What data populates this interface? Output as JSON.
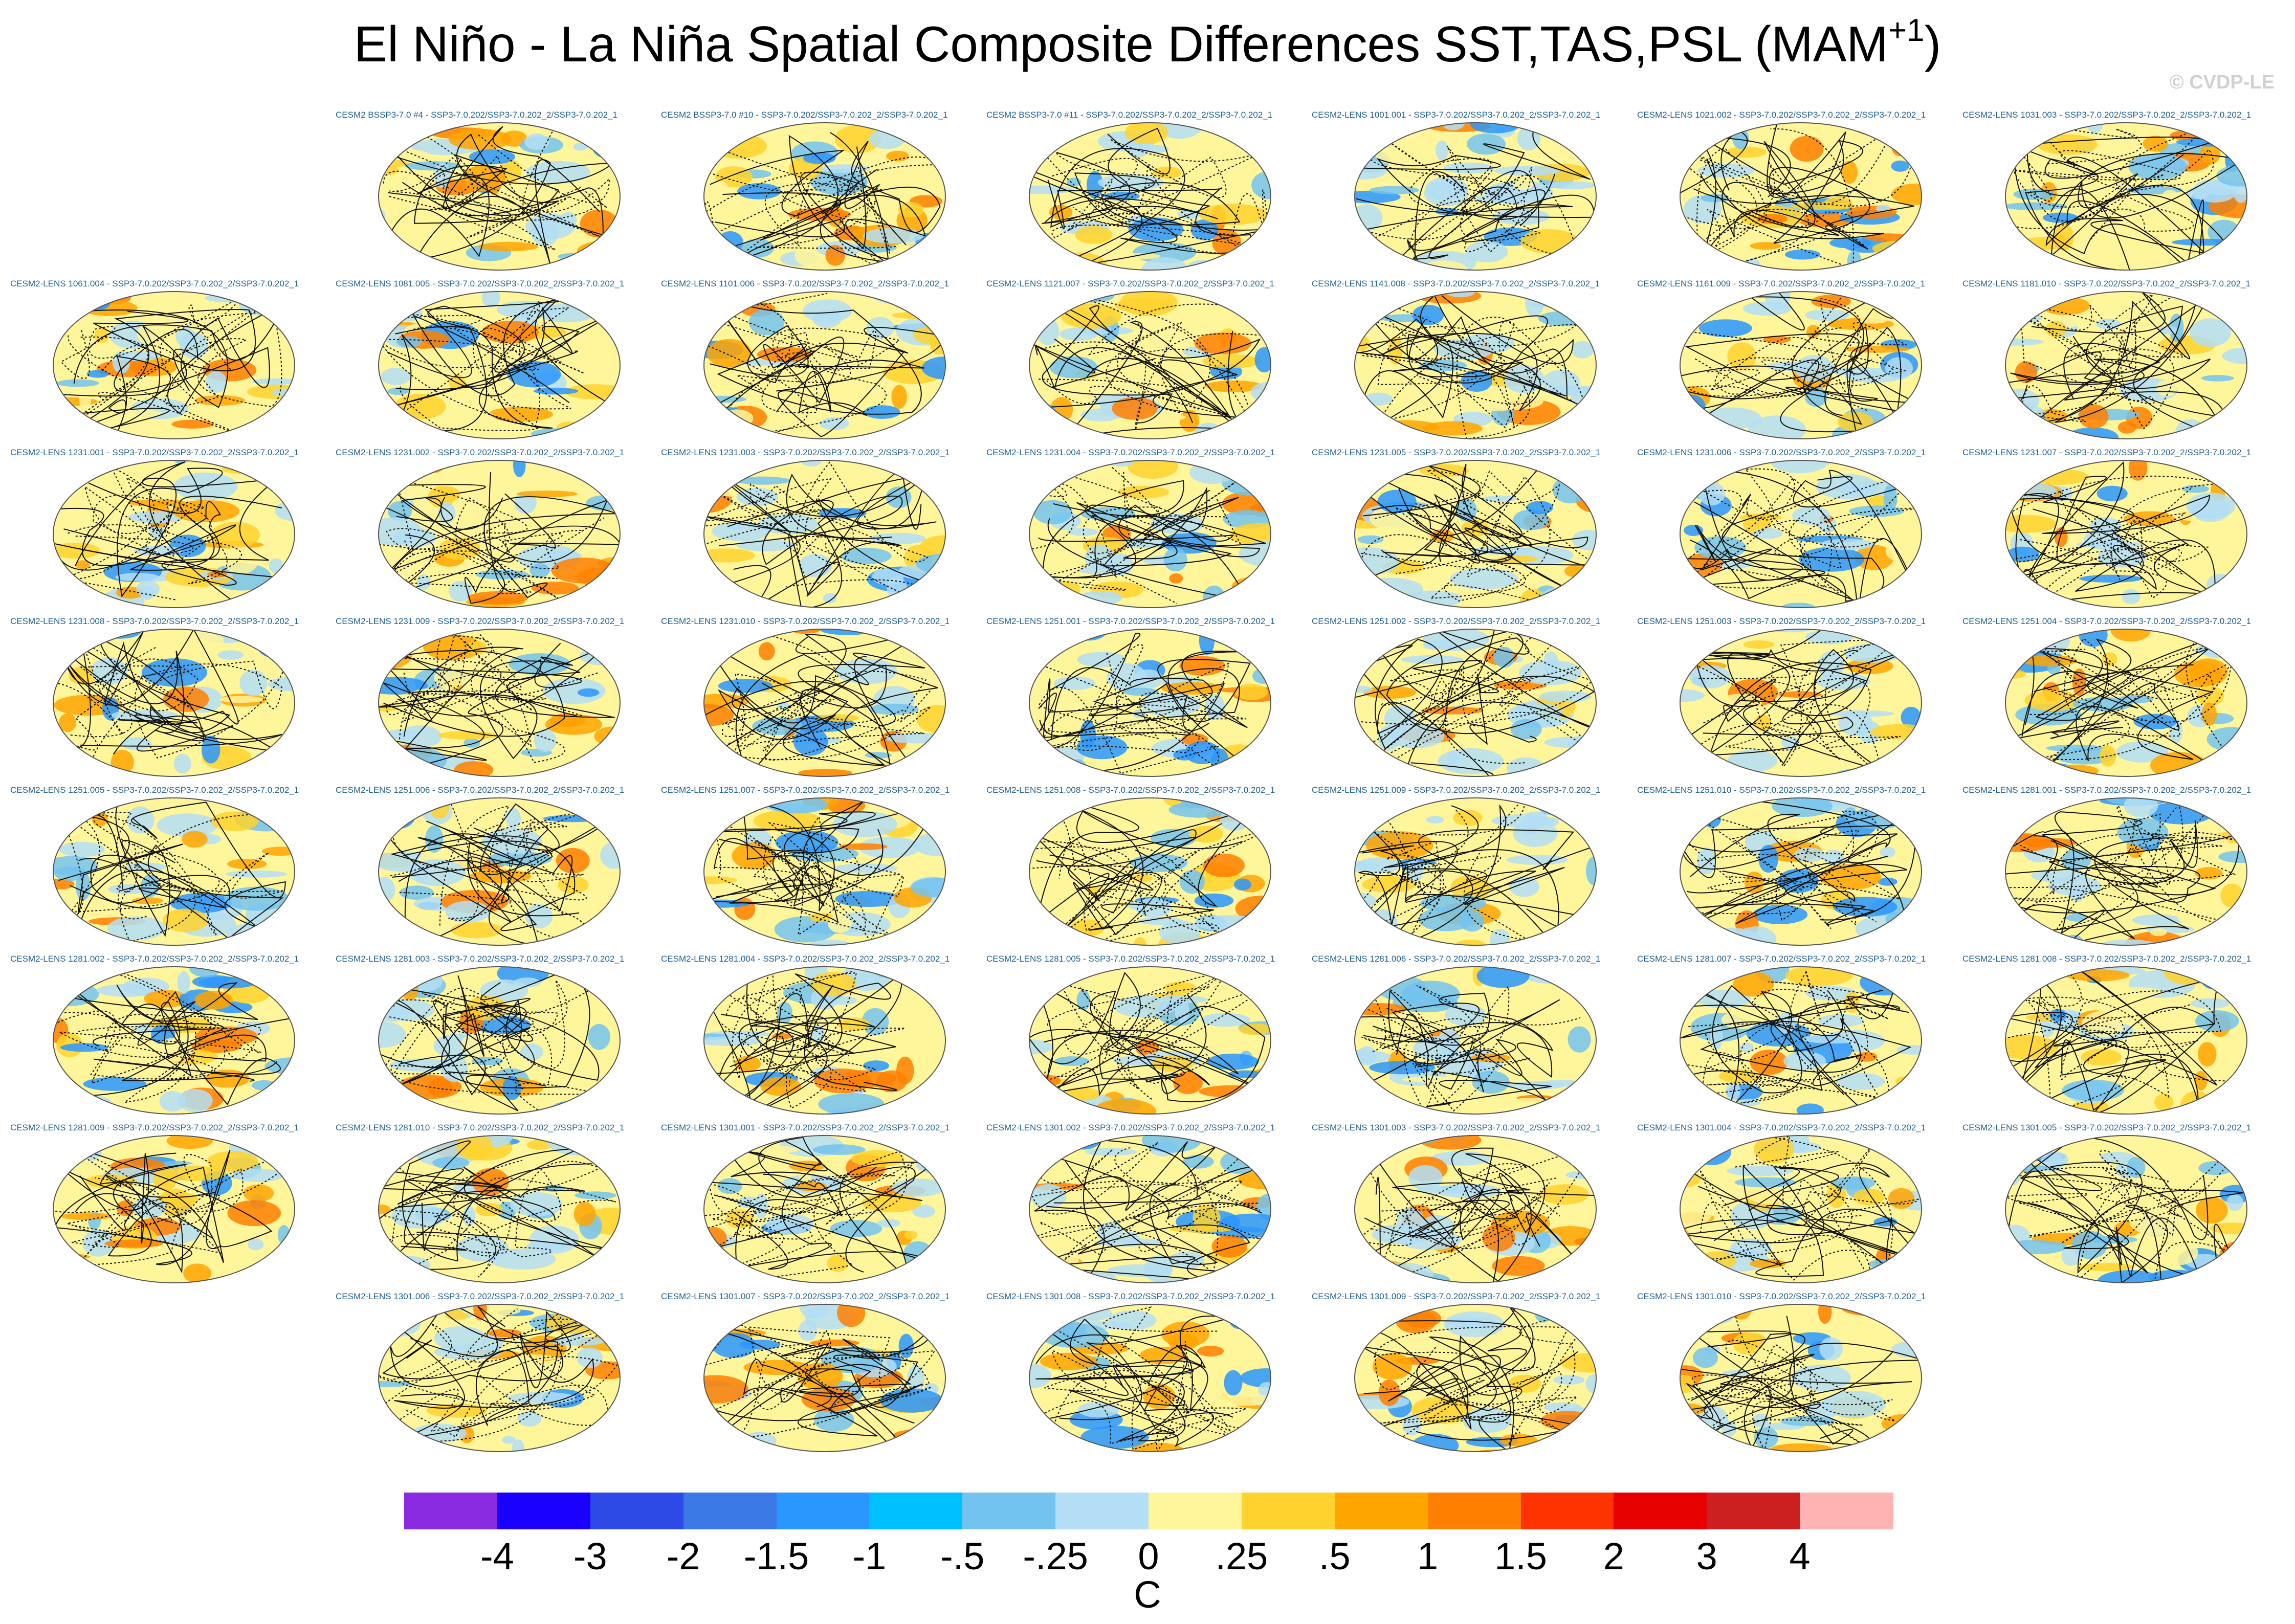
{
  "chart_data": {
    "type": "heatmap",
    "title": "El Niño - La Niña Spatial Composite Differences SST,TAS,PSL (MAM",
    "title_superscript": "+1",
    "watermark": "© CVDP-LE",
    "units": "C",
    "colorbar": {
      "colors": [
        "#8a2be2",
        "#1a00ff",
        "#2e4ae6",
        "#3a78e6",
        "#2a96ff",
        "#00bfff",
        "#73c3f0",
        "#b3def5",
        "#fff59a",
        "#ffd22e",
        "#ffa500",
        "#ff7f00",
        "#ff3300",
        "#e60000",
        "#cc1f1f",
        "#ffb3b3"
      ],
      "tick_labels": [
        "-4",
        "-3",
        "-2",
        "-1.5",
        "-1",
        "-.5",
        "-.25",
        "0",
        ".25",
        ".5",
        "1",
        "1.5",
        "2",
        "3",
        "4"
      ]
    },
    "panels": [
      "CESM2 BSSP3-7.0 #4 - SSP3-7.0.202/SSP3-7.0.202_2/SSP3-7.0.202_1",
      "CESM2 BSSP3-7.0 #10 - SSP3-7.0.202/SSP3-7.0.202_2/SSP3-7.0.202_1",
      "CESM2 BSSP3-7.0 #11 - SSP3-7.0.202/SSP3-7.0.202_2/SSP3-7.0.202_1",
      "CESM2-LENS 1001.001 - SSP3-7.0.202/SSP3-7.0.202_2/SSP3-7.0.202_1",
      "CESM2-LENS 1021.002 - SSP3-7.0.202/SSP3-7.0.202_2/SSP3-7.0.202_1",
      "CESM2-LENS 1031.003 - SSP3-7.0.202/SSP3-7.0.202_2/SSP3-7.0.202_1",
      "CESM2-LENS 1061.004 - SSP3-7.0.202/SSP3-7.0.202_2/SSP3-7.0.202_1",
      "CESM2-LENS 1081.005 - SSP3-7.0.202/SSP3-7.0.202_2/SSP3-7.0.202_1",
      "CESM2-LENS 1101.006 - SSP3-7.0.202/SSP3-7.0.202_2/SSP3-7.0.202_1",
      "CESM2-LENS 1121.007 - SSP3-7.0.202/SSP3-7.0.202_2/SSP3-7.0.202_1",
      "CESM2-LENS 1141.008 - SSP3-7.0.202/SSP3-7.0.202_2/SSP3-7.0.202_1",
      "CESM2-LENS 1161.009 - SSP3-7.0.202/SSP3-7.0.202_2/SSP3-7.0.202_1",
      "CESM2-LENS 1181.010 - SSP3-7.0.202/SSP3-7.0.202_2/SSP3-7.0.202_1",
      "CESM2-LENS 1231.001 - SSP3-7.0.202/SSP3-7.0.202_2/SSP3-7.0.202_1",
      "CESM2-LENS 1231.002 - SSP3-7.0.202/SSP3-7.0.202_2/SSP3-7.0.202_1",
      "CESM2-LENS 1231.003 - SSP3-7.0.202/SSP3-7.0.202_2/SSP3-7.0.202_1",
      "CESM2-LENS 1231.004 - SSP3-7.0.202/SSP3-7.0.202_2/SSP3-7.0.202_1",
      "CESM2-LENS 1231.005 - SSP3-7.0.202/SSP3-7.0.202_2/SSP3-7.0.202_1",
      "CESM2-LENS 1231.006 - SSP3-7.0.202/SSP3-7.0.202_2/SSP3-7.0.202_1",
      "CESM2-LENS 1231.007 - SSP3-7.0.202/SSP3-7.0.202_2/SSP3-7.0.202_1",
      "CESM2-LENS 1231.008 - SSP3-7.0.202/SSP3-7.0.202_2/SSP3-7.0.202_1",
      "CESM2-LENS 1231.009 - SSP3-7.0.202/SSP3-7.0.202_2/SSP3-7.0.202_1",
      "CESM2-LENS 1231.010 - SSP3-7.0.202/SSP3-7.0.202_2/SSP3-7.0.202_1",
      "CESM2-LENS 1251.001 - SSP3-7.0.202/SSP3-7.0.202_2/SSP3-7.0.202_1",
      "CESM2-LENS 1251.002 - SSP3-7.0.202/SSP3-7.0.202_2/SSP3-7.0.202_1",
      "CESM2-LENS 1251.003 - SSP3-7.0.202/SSP3-7.0.202_2/SSP3-7.0.202_1",
      "CESM2-LENS 1251.004 - SSP3-7.0.202/SSP3-7.0.202_2/SSP3-7.0.202_1",
      "CESM2-LENS 1251.005 - SSP3-7.0.202/SSP3-7.0.202_2/SSP3-7.0.202_1",
      "CESM2-LENS 1251.006 - SSP3-7.0.202/SSP3-7.0.202_2/SSP3-7.0.202_1",
      "CESM2-LENS 1251.007 - SSP3-7.0.202/SSP3-7.0.202_2/SSP3-7.0.202_1",
      "CESM2-LENS 1251.008 - SSP3-7.0.202/SSP3-7.0.202_2/SSP3-7.0.202_1",
      "CESM2-LENS 1251.009 - SSP3-7.0.202/SSP3-7.0.202_2/SSP3-7.0.202_1",
      "CESM2-LENS 1251.010 - SSP3-7.0.202/SSP3-7.0.202_2/SSP3-7.0.202_1",
      "CESM2-LENS 1281.001 - SSP3-7.0.202/SSP3-7.0.202_2/SSP3-7.0.202_1",
      "CESM2-LENS 1281.002 - SSP3-7.0.202/SSP3-7.0.202_2/SSP3-7.0.202_1",
      "CESM2-LENS 1281.003 - SSP3-7.0.202/SSP3-7.0.202_2/SSP3-7.0.202_1",
      "CESM2-LENS 1281.004 - SSP3-7.0.202/SSP3-7.0.202_2/SSP3-7.0.202_1",
      "CESM2-LENS 1281.005 - SSP3-7.0.202/SSP3-7.0.202_2/SSP3-7.0.202_1",
      "CESM2-LENS 1281.006 - SSP3-7.0.202/SSP3-7.0.202_2/SSP3-7.0.202_1",
      "CESM2-LENS 1281.007 - SSP3-7.0.202/SSP3-7.0.202_2/SSP3-7.0.202_1",
      "CESM2-LENS 1281.008 - SSP3-7.0.202/SSP3-7.0.202_2/SSP3-7.0.202_1",
      "CESM2-LENS 1281.009 - SSP3-7.0.202/SSP3-7.0.202_2/SSP3-7.0.202_1",
      "CESM2-LENS 1281.010 - SSP3-7.0.202/SSP3-7.0.202_2/SSP3-7.0.202_1",
      "CESM2-LENS 1301.001 - SSP3-7.0.202/SSP3-7.0.202_2/SSP3-7.0.202_1",
      "CESM2-LENS 1301.002 - SSP3-7.0.202/SSP3-7.0.202_2/SSP3-7.0.202_1",
      "CESM2-LENS 1301.003 - SSP3-7.0.202/SSP3-7.0.202_2/SSP3-7.0.202_1",
      "CESM2-LENS 1301.004 - SSP3-7.0.202/SSP3-7.0.202_2/SSP3-7.0.202_1",
      "CESM2-LENS 1301.005 - SSP3-7.0.202/SSP3-7.0.202_2/SSP3-7.0.202_1",
      "CESM2-LENS 1301.006 - SSP3-7.0.202/SSP3-7.0.202_2/SSP3-7.0.202_1",
      "CESM2-LENS 1301.007 - SSP3-7.0.202/SSP3-7.0.202_2/SSP3-7.0.202_1",
      "CESM2-LENS 1301.008 - SSP3-7.0.202/SSP3-7.0.202_2/SSP3-7.0.202_1",
      "CESM2-LENS 1301.009 - SSP3-7.0.202/SSP3-7.0.202_2/SSP3-7.0.202_1",
      "CESM2-LENS 1301.010 - SSP3-7.0.202/SSP3-7.0.202_2/SSP3-7.0.202_1"
    ]
  }
}
